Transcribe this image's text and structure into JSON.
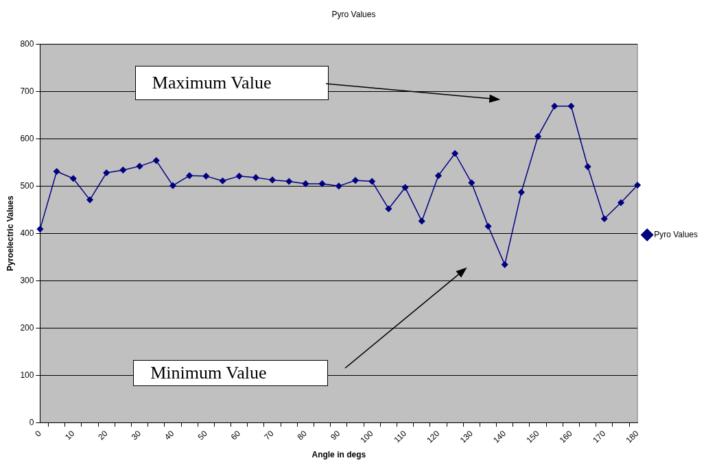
{
  "chart_data": {
    "type": "line",
    "title": "Pyro Values",
    "xlabel": "Angle in degs",
    "ylabel": "Pyroelectric Values",
    "categories": [
      "0",
      null,
      "10",
      null,
      "20",
      null,
      "30",
      null,
      "40",
      null,
      "50",
      null,
      "60",
      null,
      "70",
      null,
      "80",
      null,
      "90",
      null,
      "100",
      null,
      "110",
      null,
      "120",
      null,
      "130",
      null,
      "140",
      null,
      "150",
      null,
      "160",
      null,
      "170",
      null,
      "180"
    ],
    "series": [
      {
        "name": "Pyro Values",
        "color": "#000080",
        "values": [
          409,
          531,
          516,
          471,
          528,
          534,
          542,
          554,
          501,
          522,
          521,
          511,
          521,
          518,
          513,
          510,
          505,
          505,
          500,
          512,
          510,
          452,
          497,
          426,
          522,
          569,
          507,
          415,
          334,
          487,
          605,
          669,
          669,
          541,
          431,
          465,
          502
        ]
      }
    ],
    "ylim": [
      0,
      800
    ],
    "yticks": [
      0,
      100,
      200,
      300,
      400,
      500,
      600,
      700,
      800
    ],
    "grid": "y",
    "legend": "right",
    "marker": "diamond",
    "line_style": "solid",
    "annotations": [
      "Maximum Value",
      "Minimum Value"
    ]
  }
}
